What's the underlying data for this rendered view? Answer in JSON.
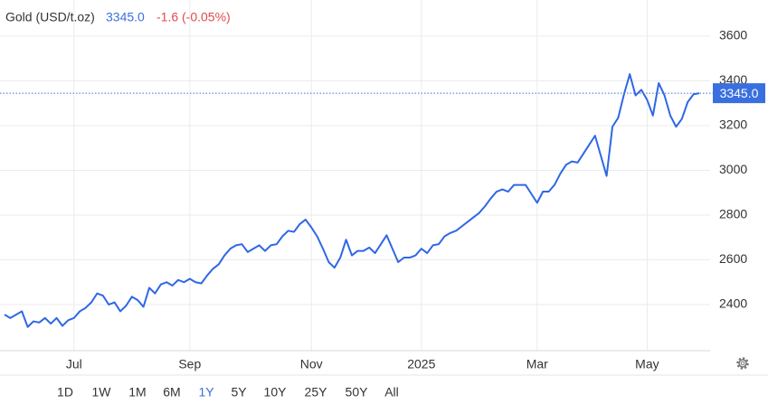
{
  "chart_data": {
    "type": "line",
    "title": "Gold (USD/t.oz)",
    "price": "3345.0",
    "change": "-1.6 (-0.05%)",
    "categories": [
      null,
      null,
      null,
      null,
      null,
      null,
      null,
      null,
      null,
      null,
      null,
      null,
      "Jul",
      null,
      null,
      null,
      null,
      null,
      null,
      null,
      null,
      null,
      null,
      null,
      null,
      null,
      null,
      null,
      null,
      null,
      null,
      null,
      "Sep",
      null,
      null,
      null,
      null,
      null,
      null,
      null,
      null,
      null,
      null,
      null,
      null,
      null,
      null,
      null,
      null,
      null,
      null,
      null,
      null,
      "Nov",
      null,
      null,
      null,
      null,
      null,
      null,
      null,
      null,
      null,
      null,
      null,
      null,
      null,
      null,
      null,
      null,
      null,
      null,
      "2025",
      null,
      null,
      null,
      null,
      null,
      null,
      null,
      null,
      null,
      null,
      null,
      null,
      null,
      null,
      null,
      null,
      null,
      null,
      null,
      "Mar",
      null,
      null,
      null,
      null,
      null,
      null,
      null,
      null,
      null,
      null,
      null,
      null,
      null,
      null,
      null,
      null,
      null,
      null,
      "May",
      null,
      null,
      null,
      null,
      null,
      null,
      null,
      null,
      null
    ],
    "series": [
      {
        "name": "Gold",
        "color": "#2f67e6",
        "values": [
          2355,
          2340,
          2355,
          2370,
          2300,
          2325,
          2320,
          2340,
          2315,
          2340,
          2305,
          2330,
          2340,
          2370,
          2385,
          2410,
          2450,
          2440,
          2400,
          2410,
          2370,
          2395,
          2435,
          2420,
          2390,
          2475,
          2450,
          2490,
          2500,
          2485,
          2510,
          2500,
          2515,
          2500,
          2495,
          2530,
          2560,
          2580,
          2620,
          2650,
          2665,
          2670,
          2635,
          2650,
          2665,
          2640,
          2665,
          2670,
          2705,
          2730,
          2725,
          2760,
          2780,
          2745,
          2705,
          2650,
          2590,
          2565,
          2610,
          2690,
          2620,
          2640,
          2640,
          2655,
          2630,
          2670,
          2710,
          2650,
          2590,
          2610,
          2610,
          2620,
          2650,
          2630,
          2665,
          2670,
          2705,
          2720,
          2730,
          2750,
          2770,
          2790,
          2810,
          2840,
          2875,
          2905,
          2915,
          2905,
          2935,
          2935,
          2935,
          2895,
          2855,
          2905,
          2905,
          2935,
          2985,
          3025,
          3040,
          3035,
          3075,
          3115,
          3155,
          3065,
          2975,
          3195,
          3235,
          3340,
          3430,
          3335,
          3360,
          3315,
          3245,
          3390,
          3335,
          3245,
          3195,
          3230,
          3305,
          3340,
          3345
        ]
      }
    ],
    "ylim": [
      2200,
      3700
    ],
    "yticks": [
      2400,
      2600,
      2800,
      3000,
      3200,
      3400,
      3600
    ],
    "grid": true,
    "price_color": "#3a6fe0",
    "change_color": "#e04b4b"
  },
  "range_buttons": [
    "1D",
    "1W",
    "1M",
    "6M",
    "1Y",
    "5Y",
    "10Y",
    "25Y",
    "50Y",
    "All"
  ],
  "active_range": "1Y"
}
